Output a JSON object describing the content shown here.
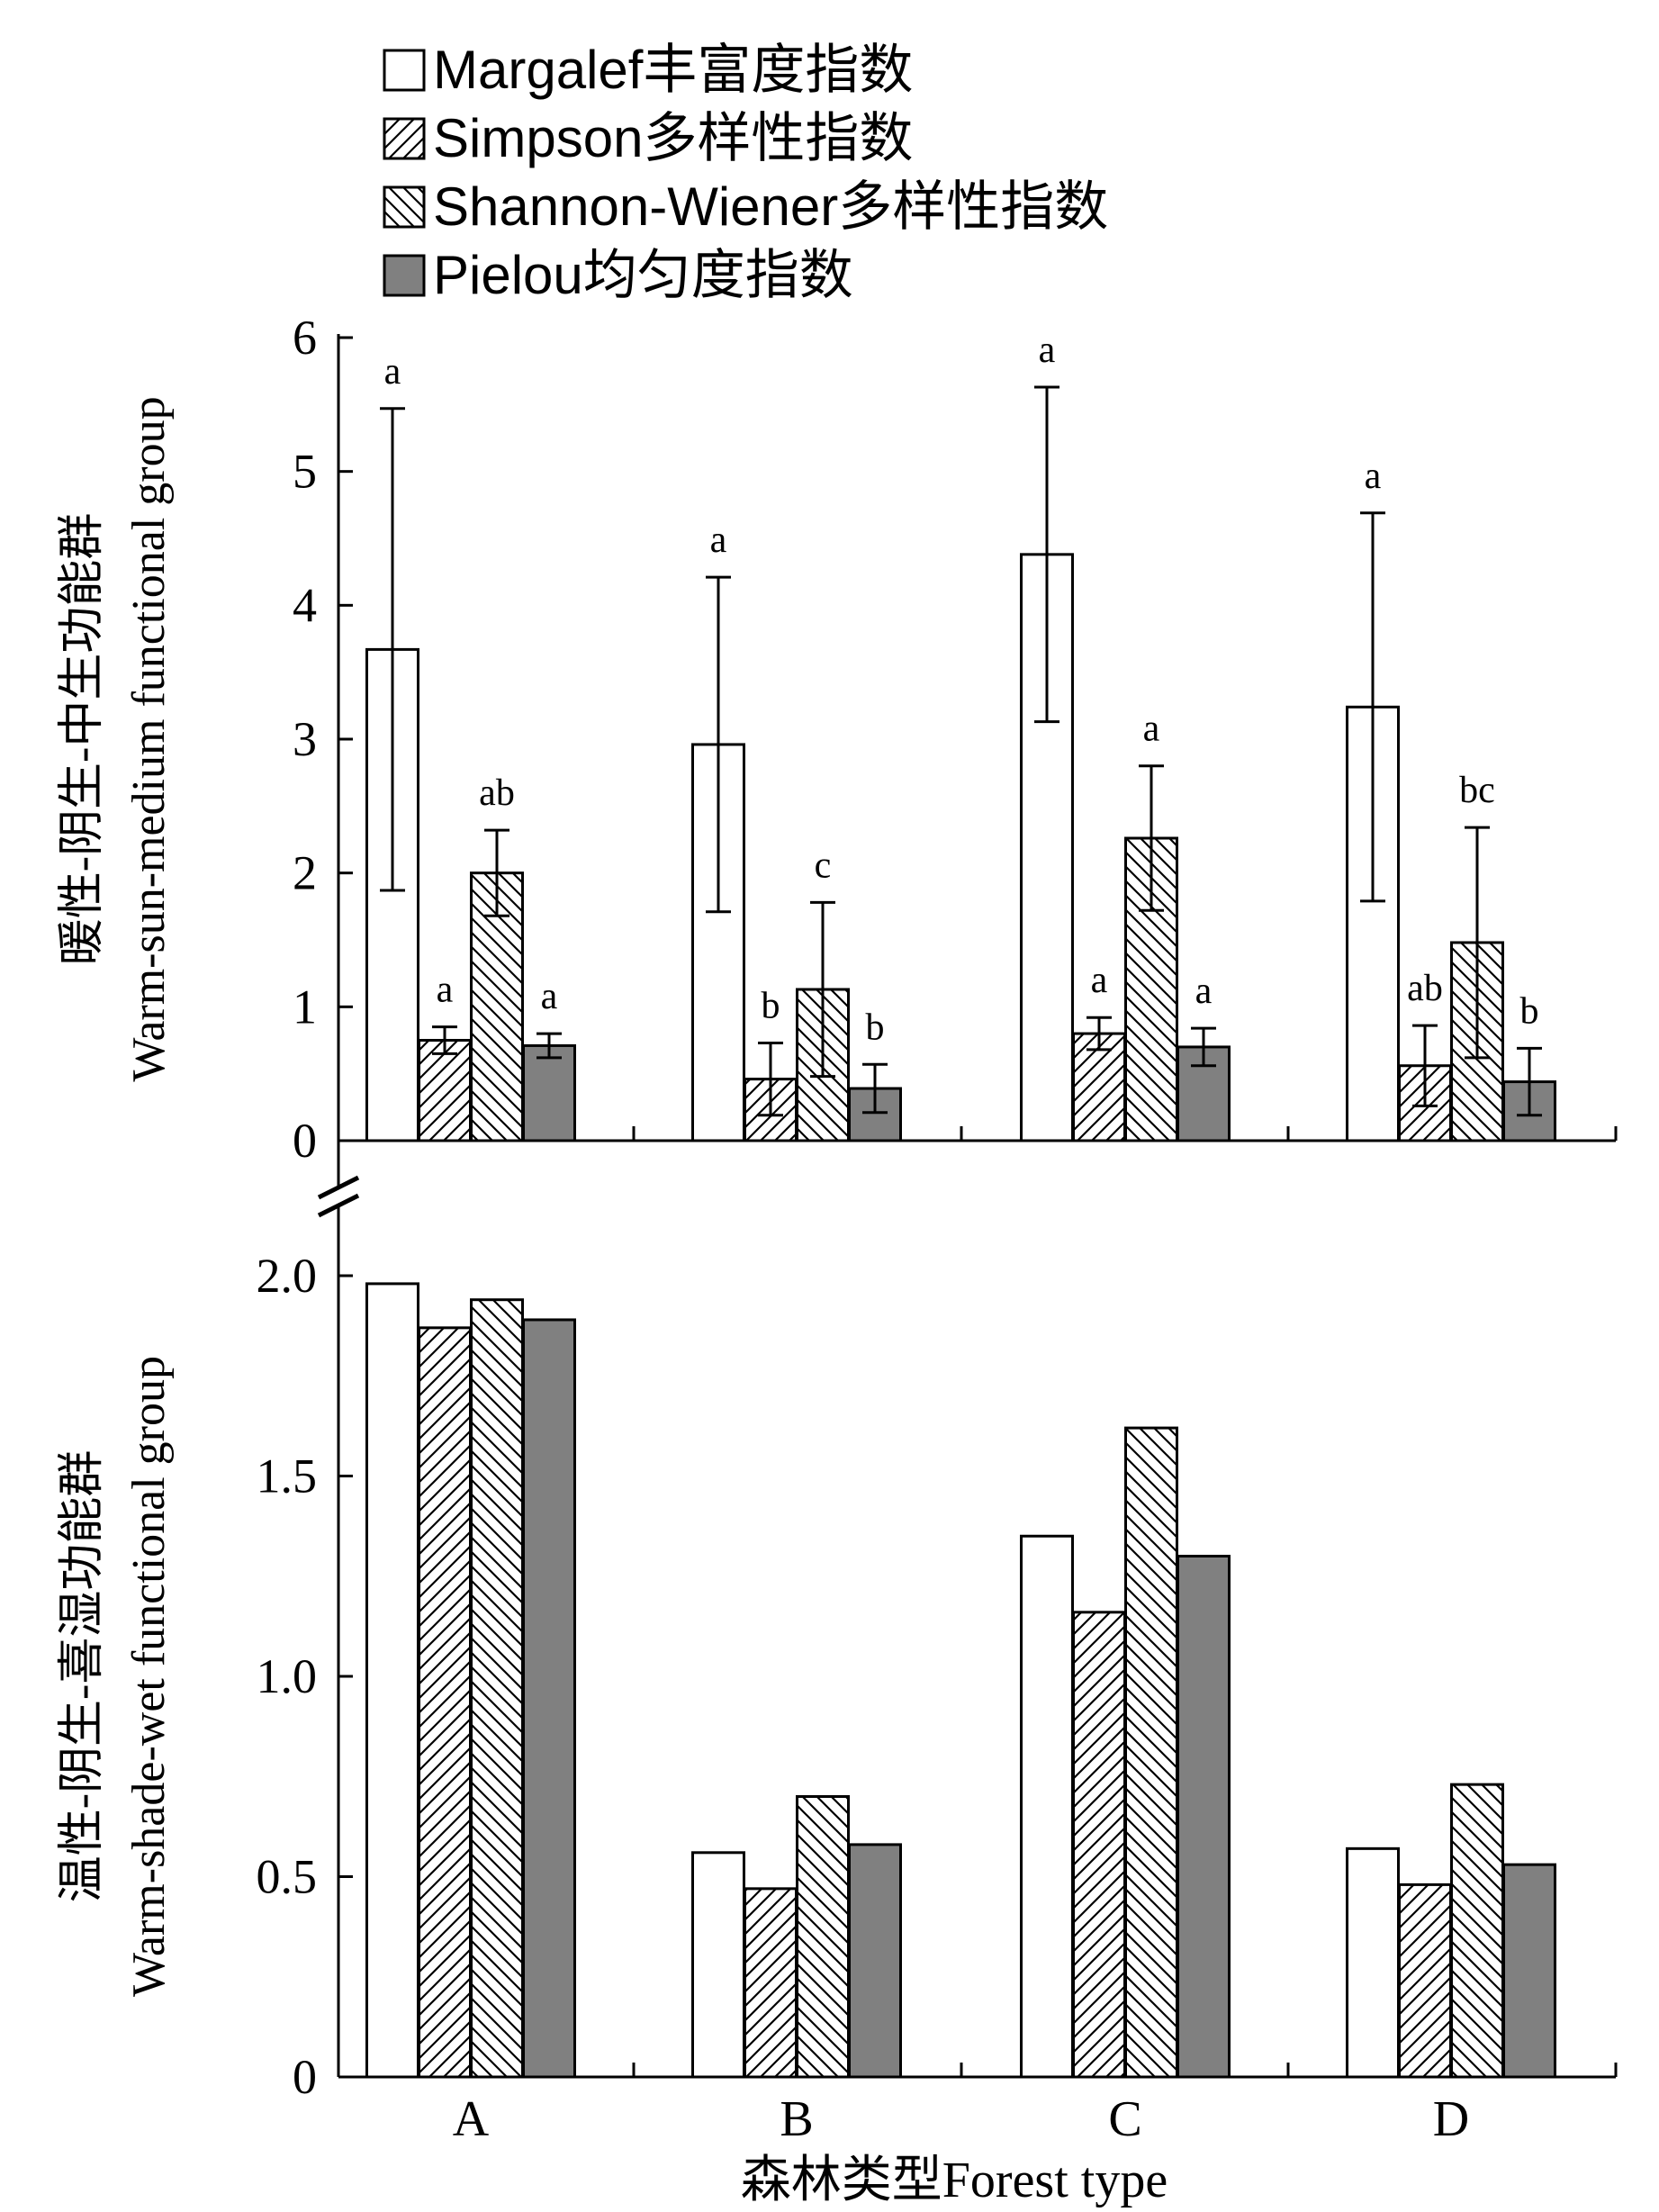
{
  "legend": [
    {
      "label": "Margalef丰富度指数",
      "style": "open"
    },
    {
      "label": "Simpson多样性指数",
      "style": "hatch-forward"
    },
    {
      "label": "Shannon-Wiener多样性指数",
      "style": "hatch-back"
    },
    {
      "label": "Pielou均匀度指数",
      "style": "solid-gray"
    }
  ],
  "colors": {
    "solid_gray": "#808080",
    "open": "#ffffff",
    "stroke": "#000000"
  },
  "xlabel": "森林类型Forest type",
  "chart_data": [
    {
      "type": "bar",
      "panel": "top",
      "ylabel_cn": "暖性-阴生-中生功能群",
      "ylabel_en": "Warm-sun-medium functional group",
      "categories": [
        "A",
        "B",
        "C",
        "D"
      ],
      "ylim": [
        0,
        6
      ],
      "yticks": [
        "0",
        "1",
        "2",
        "3",
        "4",
        "5",
        "6"
      ],
      "series": [
        {
          "name": "Margalef丰富度指数",
          "values": [
            3.67,
            2.96,
            4.38,
            3.24
          ],
          "errors": [
            1.8,
            1.25,
            1.25,
            1.45
          ],
          "letters": [
            "a",
            "a",
            "a",
            "a"
          ]
        },
        {
          "name": "Simpson多样性指数",
          "values": [
            0.75,
            0.46,
            0.8,
            0.56
          ],
          "errors": [
            0.1,
            0.27,
            0.12,
            0.3
          ],
          "letters": [
            "a",
            "b",
            "a",
            "ab"
          ]
        },
        {
          "name": "Shannon-Wiener多样性指数",
          "values": [
            2.0,
            1.13,
            2.26,
            1.48
          ],
          "errors": [
            0.32,
            0.65,
            0.54,
            0.86
          ],
          "letters": [
            "ab",
            "c",
            "a",
            "bc"
          ]
        },
        {
          "name": "Pielou均匀度指数",
          "values": [
            0.71,
            0.39,
            0.7,
            0.44
          ],
          "errors": [
            0.09,
            0.18,
            0.14,
            0.25
          ],
          "letters": [
            "a",
            "b",
            "a",
            "b"
          ]
        }
      ]
    },
    {
      "type": "bar",
      "panel": "bottom",
      "ylabel_cn": "温性-阴生-喜湿功能群",
      "ylabel_en": "Warm-shade-wet functional group",
      "categories": [
        "A",
        "B",
        "C",
        "D"
      ],
      "ylim": [
        0,
        2.0
      ],
      "yticks": [
        "0",
        "0.5",
        "1.0",
        "1.5",
        "2.0"
      ],
      "series": [
        {
          "name": "Margalef丰富度指数",
          "values": [
            1.98,
            0.56,
            1.35,
            0.57
          ]
        },
        {
          "name": "Simpson多样性指数",
          "values": [
            1.87,
            0.47,
            1.16,
            0.48
          ]
        },
        {
          "name": "Shannon-Wiener多样性指数",
          "values": [
            1.94,
            0.7,
            1.62,
            0.73
          ]
        },
        {
          "name": "Pielou均匀度指数",
          "values": [
            1.89,
            0.58,
            1.3,
            0.53
          ]
        }
      ]
    }
  ]
}
